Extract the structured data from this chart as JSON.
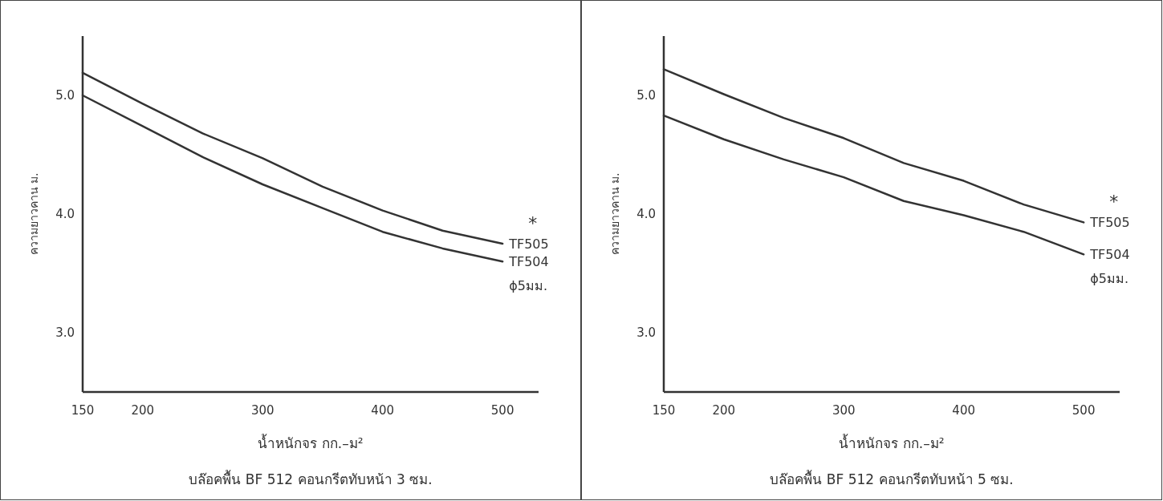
{
  "chart_data": [
    {
      "type": "line",
      "title": "บล๊อคพื้น BF 512 คอนกรีตทับหน้า 3 ซม.",
      "xlabel": "น้ำหนักจร กก.–ม²",
      "ylabel": "ความยาวคาน ม.",
      "x": [
        150,
        200,
        250,
        300,
        350,
        400,
        450,
        500
      ],
      "xlim": [
        150,
        530
      ],
      "ylim": [
        2.5,
        5.5
      ],
      "xticks": [
        150,
        200,
        300,
        400,
        500
      ],
      "yticks": [
        {
          "value": 3,
          "label": "3.0"
        },
        {
          "value": 4,
          "label": "4.0"
        },
        {
          "value": 5,
          "label": "5.0"
        }
      ],
      "annotations": [
        "*",
        "ϕ5มม."
      ],
      "series": [
        {
          "name": "TF505",
          "color": "#333333",
          "values": [
            5.19,
            4.93,
            4.68,
            4.47,
            4.23,
            4.03,
            3.86,
            3.75
          ]
        },
        {
          "name": "TF504",
          "color": "#333333",
          "values": [
            5.0,
            4.74,
            4.48,
            4.25,
            4.05,
            3.85,
            3.71,
            3.6
          ]
        }
      ]
    },
    {
      "type": "line",
      "title": "บล๊อคพื้น BF 512 คอนกรีตทับหน้า 5 ซม.",
      "xlabel": "น้ำหนักจร กก.–ม²",
      "ylabel": "ความยาวคาน ม.",
      "x": [
        150,
        200,
        250,
        300,
        350,
        400,
        450,
        500
      ],
      "xlim": [
        150,
        530
      ],
      "ylim": [
        2.5,
        5.5
      ],
      "xticks": [
        150,
        200,
        300,
        400,
        500
      ],
      "yticks": [
        {
          "value": 3,
          "label": "3.0"
        },
        {
          "value": 4,
          "label": "4.0"
        },
        {
          "value": 5,
          "label": "5.0"
        }
      ],
      "annotations": [
        "*",
        "ϕ5มม."
      ],
      "series": [
        {
          "name": "TF505",
          "color": "#333333",
          "values": [
            5.22,
            5.01,
            4.81,
            4.64,
            4.43,
            4.28,
            4.08,
            3.93
          ]
        },
        {
          "name": "TF504",
          "color": "#333333",
          "values": [
            4.83,
            4.63,
            4.46,
            4.31,
            4.11,
            3.99,
            3.85,
            3.66
          ]
        }
      ]
    }
  ]
}
